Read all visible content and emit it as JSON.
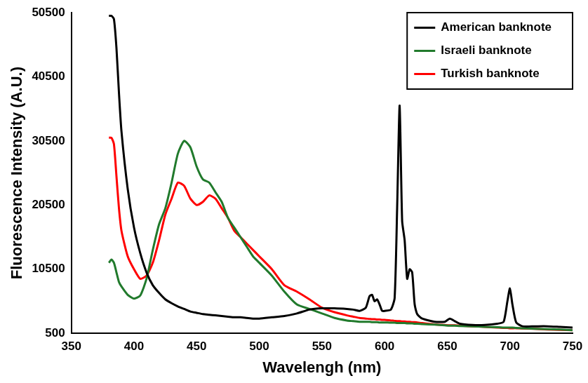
{
  "chart_data": {
    "type": "line",
    "x_label": "Wavelengh (nm)",
    "y_label": "Fluorescence Intensity (A.U.)",
    "x": [
      380,
      382,
      384,
      386,
      388,
      390,
      395,
      400,
      405,
      410,
      415,
      420,
      425,
      430,
      435,
      440,
      445,
      450,
      455,
      460,
      465,
      470,
      475,
      480,
      485,
      490,
      495,
      500,
      510,
      520,
      530,
      540,
      550,
      560,
      570,
      575,
      580,
      585,
      588,
      590,
      592,
      594,
      596,
      598,
      600,
      605,
      608,
      610,
      612,
      614,
      616,
      618,
      620,
      622,
      624,
      626,
      630,
      640,
      648,
      652,
      656,
      660,
      670,
      680,
      690,
      695,
      698,
      700,
      702,
      705,
      710,
      720,
      730,
      740,
      750
    ],
    "series": [
      {
        "name": "American banknote",
        "color": "#000000",
        "values": [
          50000,
          50000,
          49500,
          45000,
          38000,
          32000,
          23000,
          17000,
          13000,
          10000,
          8000,
          6800,
          5800,
          5200,
          4700,
          4300,
          3900,
          3700,
          3500,
          3400,
          3300,
          3200,
          3100,
          3000,
          3000,
          2900,
          2800,
          2800,
          3000,
          3200,
          3600,
          4200,
          4400,
          4400,
          4300,
          4200,
          4000,
          4500,
          6300,
          6500,
          5500,
          5800,
          5000,
          4000,
          4000,
          4200,
          6000,
          20000,
          36000,
          18000,
          15000,
          9000,
          10500,
          10000,
          5000,
          3500,
          2800,
          2300,
          2300,
          2800,
          2400,
          2000,
          1800,
          1800,
          2000,
          2300,
          5500,
          7500,
          5000,
          2200,
          1600,
          1600,
          1600,
          1500,
          1400
        ]
      },
      {
        "name": "Israeli banknote",
        "color": "#217a2c",
        "values": [
          11500,
          12000,
          11500,
          10000,
          8500,
          7800,
          6500,
          5900,
          6400,
          9000,
          13500,
          17500,
          20000,
          24000,
          28500,
          30500,
          29500,
          26500,
          24500,
          24000,
          22500,
          21000,
          18500,
          17000,
          15500,
          14000,
          12500,
          11500,
          9500,
          7000,
          5000,
          4300,
          3600,
          2900,
          2500,
          2400,
          2300,
          2300,
          2300,
          2250,
          2250,
          2250,
          2200,
          2200,
          2200,
          2150,
          2150,
          2100,
          2100,
          2100,
          2100,
          2050,
          2050,
          2050,
          2000,
          2000,
          1950,
          1850,
          1750,
          1700,
          1700,
          1650,
          1600,
          1500,
          1450,
          1400,
          1400,
          1400,
          1400,
          1350,
          1300,
          1200,
          1150,
          1100,
          1000
        ]
      },
      {
        "name": "Turkish banknote",
        "color": "#ff0000",
        "values": [
          31000,
          31000,
          30000,
          25000,
          20000,
          16500,
          12500,
          10500,
          9000,
          9500,
          11500,
          15000,
          19000,
          21500,
          24000,
          23500,
          21500,
          20500,
          21000,
          22000,
          21500,
          20000,
          18500,
          16500,
          15500,
          14500,
          13500,
          12500,
          10500,
          8000,
          7000,
          5800,
          4500,
          3800,
          3300,
          3100,
          2900,
          2800,
          2750,
          2700,
          2700,
          2650,
          2650,
          2600,
          2600,
          2500,
          2450,
          2400,
          2400,
          2350,
          2350,
          2300,
          2300,
          2250,
          2250,
          2200,
          2100,
          1900,
          1800,
          1750,
          1750,
          1700,
          1600,
          1500,
          1400,
          1350,
          1350,
          1300,
          1300,
          1300,
          1250,
          1200,
          1100,
          1050,
          1000
        ]
      }
    ],
    "xlim": [
      350,
      750
    ],
    "xticks": [
      350,
      400,
      450,
      500,
      550,
      600,
      650,
      700,
      750
    ],
    "ylim": [
      500,
      50500
    ],
    "yticks": [
      500,
      10500,
      20500,
      30500,
      40500,
      50500
    ],
    "grid": false,
    "legend": "upper right"
  }
}
